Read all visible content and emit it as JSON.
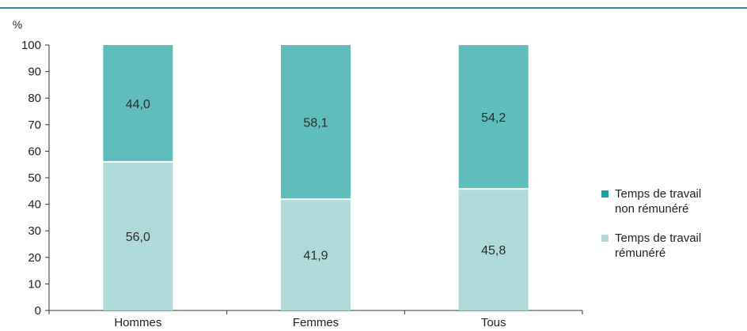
{
  "chart_data": {
    "type": "bar",
    "stacked": true,
    "unit_label": "%",
    "categories": [
      "Hommes",
      "Femmes",
      "Tous"
    ],
    "series": [
      {
        "name": "Temps de travail rémunéré",
        "values": [
          56.0,
          41.9,
          45.8
        ],
        "labels": [
          "56,0",
          "41,9",
          "45,8"
        ],
        "color": "#b0dada"
      },
      {
        "name": "Temps de travail non rémunéré",
        "values": [
          44.0,
          58.1,
          54.2
        ],
        "labels": [
          "44,0",
          "58,1",
          "54,2"
        ],
        "color": "#5fbdbb"
      }
    ],
    "ylim": [
      0,
      100
    ],
    "yticks": [
      0,
      10,
      20,
      30,
      40,
      50,
      60,
      70,
      80,
      90,
      100
    ],
    "title": "",
    "xlabel": "",
    "ylabel": "",
    "legend_position": "right",
    "grid": false
  },
  "legend": {
    "items": [
      {
        "label_line1": "Temps de travail",
        "label_line2": "non rémunéré",
        "color": "#1aa3a0"
      },
      {
        "label_line1": "Temps de travail",
        "label_line2": "rémunéré",
        "color": "#b0dada"
      }
    ]
  },
  "colors": {
    "rule": "#2a8ca3",
    "axis": "#333333"
  }
}
